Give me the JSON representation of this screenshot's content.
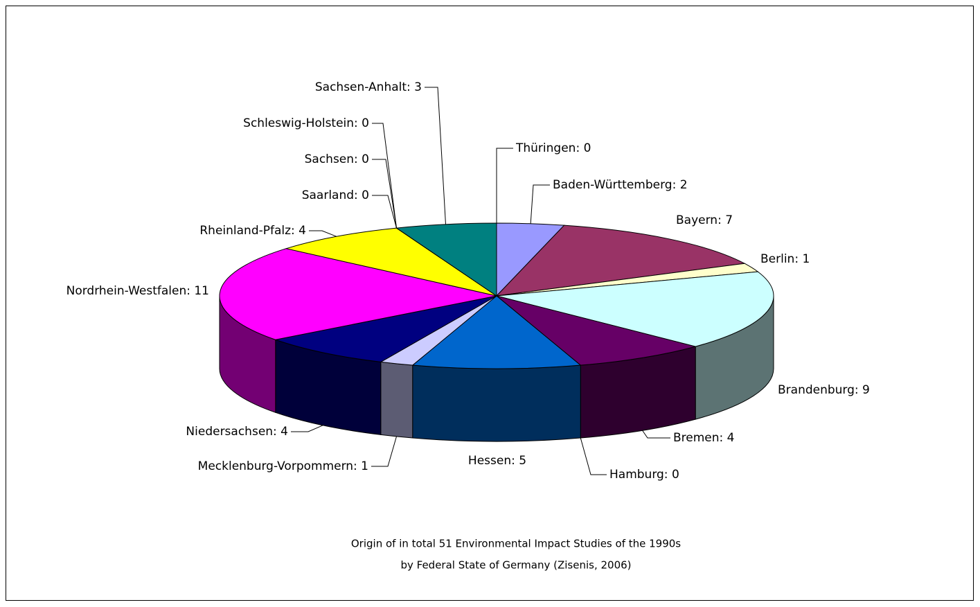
{
  "chart_data": {
    "type": "pie3d",
    "title": "Origin of in total 51 Environmental Impact Studies of the 1990s",
    "subtitle": "by Federal State of Germany (Zisenis, 2006)",
    "values": [
      0,
      2,
      7,
      1,
      9,
      4,
      0,
      5,
      1,
      4,
      11,
      4,
      0,
      0,
      0,
      3
    ],
    "value_labels": [
      "Thüringen: 0",
      "Baden-Württemberg: 2",
      "Bayern: 7",
      "Berlin: 1",
      "Brandenburg: 9",
      "Bremen: 4",
      "Hamburg: 0",
      "Hessen: 5",
      "Mecklenburg-Vorpommern: 1",
      "Niedersachsen: 4",
      "Nordrhein-Westfalen: 11",
      "Rheinland-Pfalz: 4",
      "Saarland: 0",
      "Sachsen: 0",
      "Schleswig-Holstein: 0",
      "Sachsen-Anhalt: 3"
    ],
    "colors": [
      "#ff8080",
      "#9999ff",
      "#993366",
      "#ffffcc",
      "#ccffff",
      "#660066",
      "#00ccff",
      "#0066cc",
      "#ccccff",
      "#000080",
      "#ff00ff",
      "#ffff00",
      "#00ffff",
      "#800000",
      "#008000",
      "#008080"
    ]
  }
}
